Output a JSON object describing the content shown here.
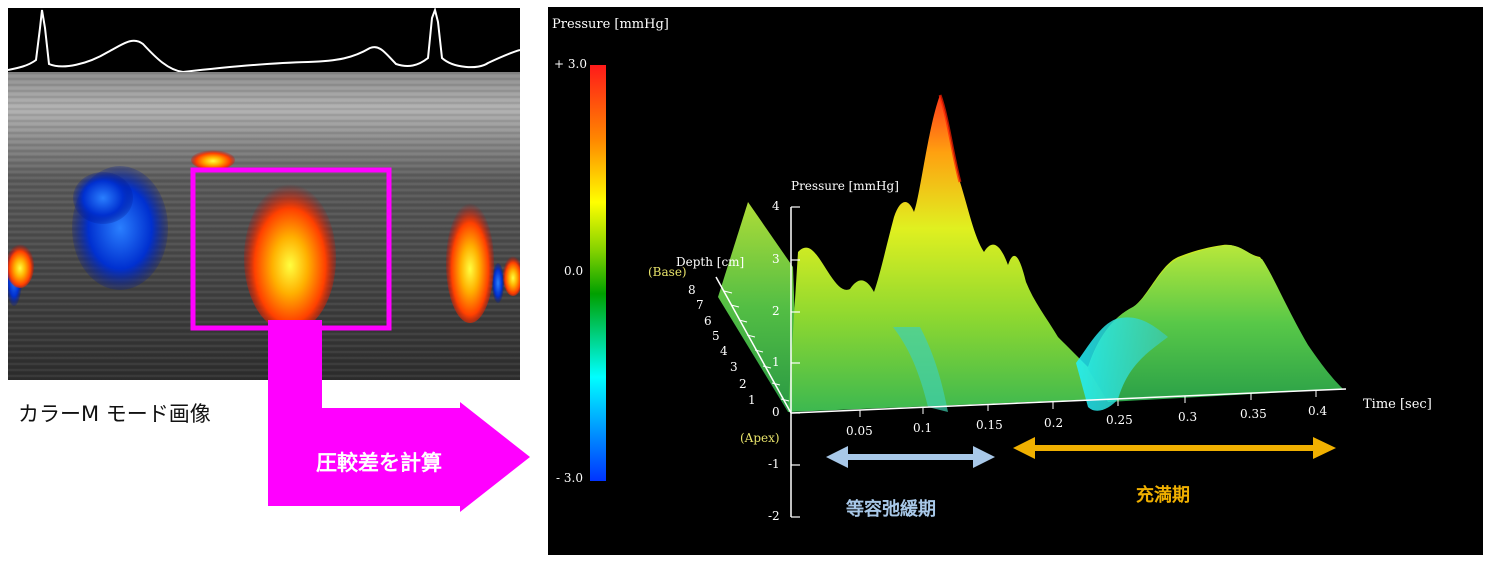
{
  "left": {
    "caption": "カラーM モード画像",
    "arrow_label": "圧較差を計算"
  },
  "colorbar": {
    "title": "Pressure [mmHg]",
    "max_label": "+ 3.0",
    "mid_label": "0.0",
    "min_label": "- 3.0",
    "colors": [
      "#ff1a1a",
      "#ff8800",
      "#ffff00",
      "#7fd000",
      "#00a000",
      "#00ffff",
      "#0033ff"
    ]
  },
  "plot": {
    "z_axis_title": "Pressure [mmHg]",
    "z_ticks": [
      "4",
      "3",
      "2",
      "1",
      "0",
      "-1",
      "-2"
    ],
    "depth_title": "Depth [cm]",
    "base_label": "(Base)",
    "apex_label": "(Apex)",
    "depth_ticks": [
      "8",
      "7",
      "6",
      "5",
      "4",
      "3",
      "2",
      "1"
    ],
    "time_title": "Time [sec]",
    "time_ticks": [
      "0.05",
      "0.1",
      "0.15",
      "0.2",
      "0.25",
      "0.3",
      "0.35",
      "0.4"
    ]
  },
  "phases": {
    "ivr_label": "等容弛緩期",
    "ivr_color": "#a8c8e8",
    "filling_label": "充満期",
    "filling_color": "#f0b000"
  },
  "colors": {
    "highlight_magenta": "#ff00ff"
  }
}
